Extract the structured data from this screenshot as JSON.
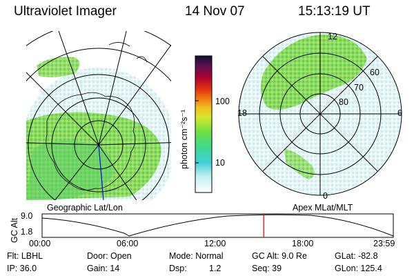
{
  "header": {
    "instrument": "Ultraviolet Imager",
    "date": "14 Nov 07",
    "time": "15:13:19 UT"
  },
  "colorbar": {
    "unit_label": "photon cm⁻²s⁻¹",
    "ticks": [
      "100",
      "10"
    ],
    "scale": "log"
  },
  "left_panel": {
    "caption": "Geographic Lat/Lon"
  },
  "right_panel": {
    "caption": "Apex MLat/MLT",
    "lat_labels": [
      "80",
      "70",
      "60"
    ],
    "mlt_labels": {
      "top": "12",
      "left": "18",
      "right": "6",
      "bottom": "0"
    }
  },
  "altitude_plot": {
    "y_label": "GC Alt",
    "y_ticks": [
      "9.0",
      "1.8"
    ],
    "x_ticks": [
      "00:00",
      "06:00",
      "12:00",
      "18:00",
      "23:59"
    ],
    "current_time_fraction": 0.631,
    "marker_color": "#ff0000"
  },
  "info": {
    "filter": "Flt: LBHL",
    "ip": "IP: 36.0",
    "door": "Door: Open",
    "gain": "Gain: 14",
    "mode": "Mode: Normal",
    "dsp_label": "Dsp:",
    "dsp_value": "1.2",
    "gc_alt": "GC Alt: 9.0 Re",
    "seq": "Seq: 39",
    "glat": "GLat: -82.8",
    "glon": "GLon: 125.4"
  }
}
